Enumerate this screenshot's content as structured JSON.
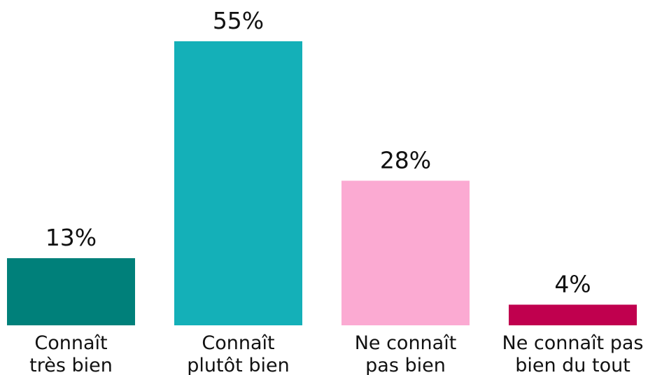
{
  "chart_data": {
    "type": "bar",
    "categories": [
      [
        "Connaît",
        "très bien"
      ],
      [
        "Connaît",
        "plutôt bien"
      ],
      [
        "Ne connaît",
        "pas bien"
      ],
      [
        "Ne connaît pas",
        "bien du tout"
      ]
    ],
    "values": [
      13,
      55,
      28,
      4
    ],
    "value_labels": [
      "13%",
      "55%",
      "28%",
      "4%"
    ],
    "colors": [
      "#00807a",
      "#14b0b8",
      "#fbaad2",
      "#c0004e"
    ]
  }
}
